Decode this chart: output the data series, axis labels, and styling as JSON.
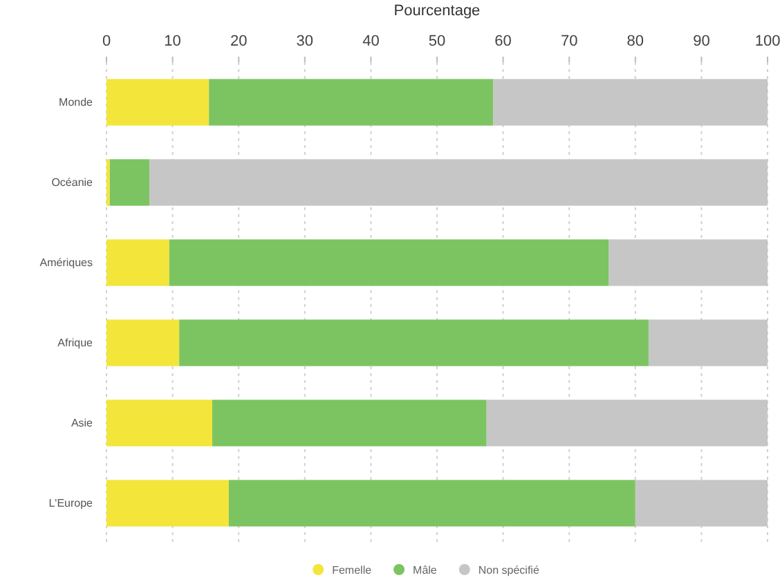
{
  "chart_data": {
    "type": "bar",
    "orientation": "horizontal",
    "stacked": true,
    "xlabel": "Pourcentage",
    "categories": [
      "Monde",
      "Océanie",
      "Amériques",
      "Afrique",
      "Asie",
      "L'Europe"
    ],
    "series": [
      {
        "name": "Femelle",
        "color": "#f3e53a",
        "values": [
          15.5,
          0.5,
          9.5,
          11,
          16,
          18.5
        ]
      },
      {
        "name": "Mâle",
        "color": "#7cc462",
        "values": [
          43,
          6,
          66.5,
          71,
          41.5,
          61.5
        ]
      },
      {
        "name": "Non spécifié",
        "color": "#c6c6c6",
        "values": [
          41.5,
          93.5,
          24,
          18,
          42.5,
          20
        ]
      }
    ],
    "xlim": [
      0,
      100
    ],
    "xticks": [
      0,
      10,
      20,
      30,
      40,
      50,
      60,
      70,
      80,
      90,
      100
    ],
    "grid": "x",
    "legend": "bottom"
  }
}
